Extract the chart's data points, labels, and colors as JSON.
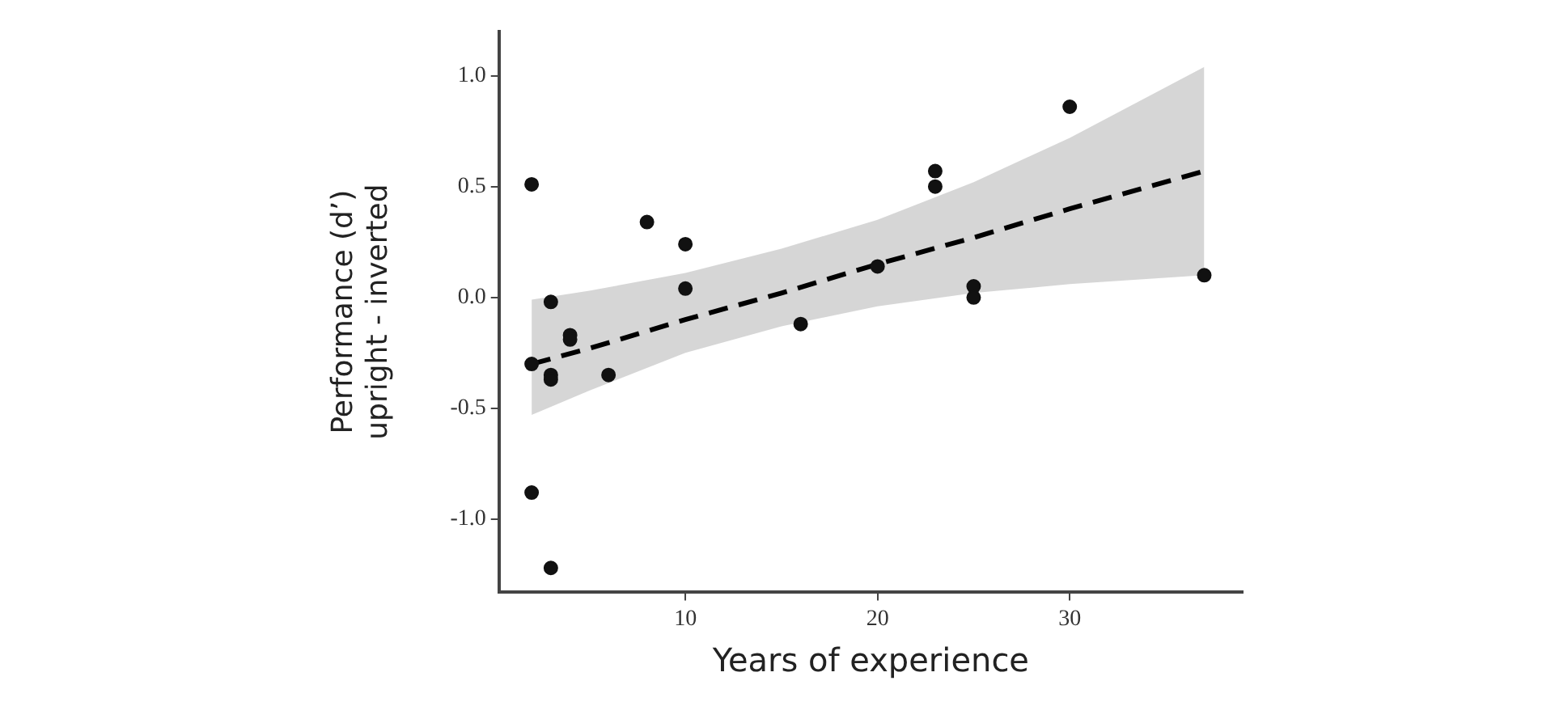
{
  "chart_data": {
    "type": "scatter",
    "xlabel": "Years of experience",
    "ylabel": "Performance (d’)\nupright - inverted",
    "xlim": [
      0.3,
      39
    ],
    "ylim": [
      -1.33,
      1.2
    ],
    "xticks": [
      10,
      20,
      30
    ],
    "yticks": [
      {
        "value": -1,
        "label": "-1.0"
      },
      {
        "value": -0.5,
        "label": "-0.5"
      },
      {
        "value": 0,
        "label": "0.0"
      },
      {
        "value": 0.5,
        "label": "0.5"
      },
      {
        "value": 1,
        "label": "1.0"
      }
    ],
    "grid": false,
    "legend": false,
    "marker": "circle",
    "series": [
      {
        "type": "scatter",
        "color": "#111111",
        "x": [
          2,
          2,
          2,
          3,
          3,
          3,
          3,
          4,
          4,
          6,
          8,
          10,
          10,
          16,
          20,
          23,
          23,
          25,
          25,
          30,
          37
        ],
        "values": [
          0.51,
          -0.3,
          -0.88,
          -0.02,
          -0.35,
          -0.37,
          -1.22,
          -0.17,
          -0.19,
          -0.35,
          0.34,
          0.24,
          0.04,
          -0.12,
          0.14,
          0.57,
          0.5,
          0.05,
          0,
          0.86,
          0.1
        ]
      },
      {
        "type": "line",
        "color": "#000000",
        "line_style": "dashed",
        "marker": "none",
        "x": [
          2,
          5,
          10,
          15,
          20,
          25,
          30,
          37
        ],
        "values": [
          -0.3,
          -0.23,
          -0.1,
          0.02,
          0.15,
          0.27,
          0.4,
          0.57
        ],
        "lower": [
          -0.53,
          -0.42,
          -0.25,
          -0.13,
          -0.04,
          0.02,
          0.06,
          0.1
        ],
        "upper": [
          -0.01,
          0.03,
          0.11,
          0.22,
          0.35,
          0.52,
          0.72,
          1.04
        ]
      }
    ]
  }
}
